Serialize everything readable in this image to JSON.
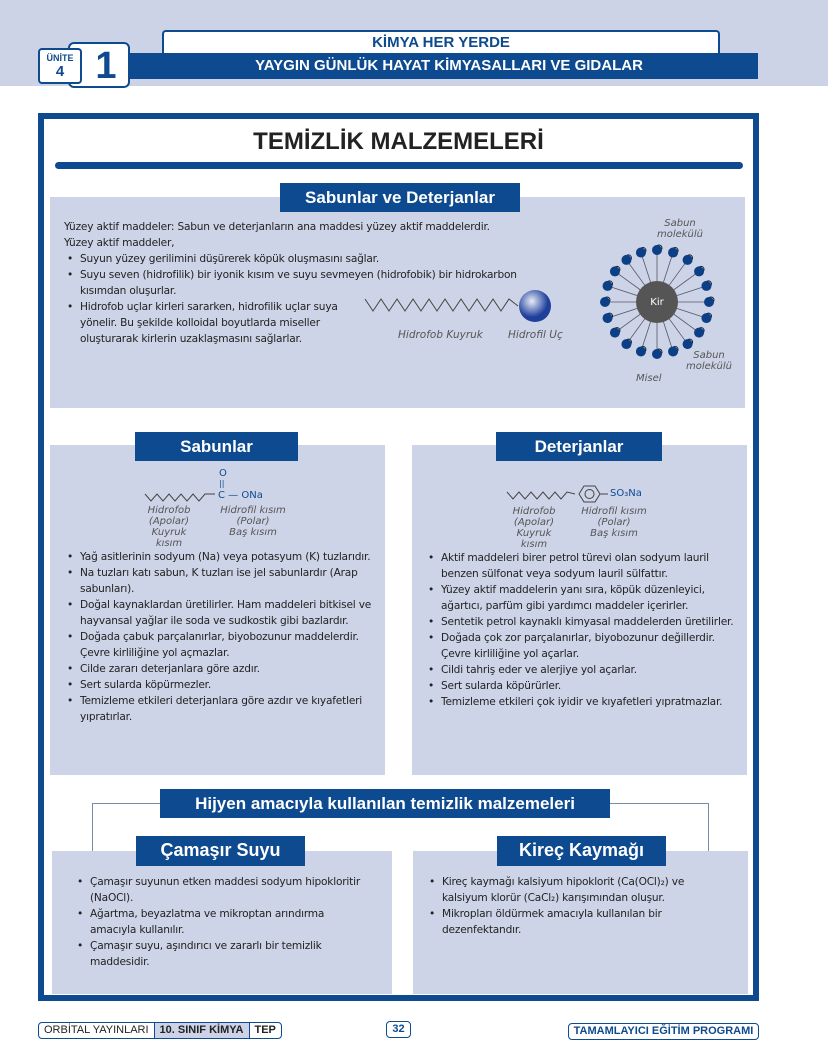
{
  "header": {
    "top_title": "KİMYA HER YERDE",
    "subtitle": "YAYGIN GÜNLÜK HAYAT KİMYASALLARI VE GIDALAR",
    "unit_label": "ÜNİTE",
    "unit_number": "4",
    "chapter_number": "1"
  },
  "page_title": "TEMİZLİK MALZEMELERİ",
  "section1": {
    "heading": "Sabunlar ve Deterjanlar",
    "intro1": "Yüzey aktif maddeler: Sabun ve deterjanların ana maddesi yüzey aktif maddelerdir.",
    "intro2": "Yüzey aktif maddeler,",
    "bullets": [
      "Suyun yüzey gerilimini düşürerek köpük oluşmasını sağlar.",
      "Suyu seven (hidrofilik) bir iyonik kısım ve suyu sevmeyen (hidrofobik) bir hidrokarbon kısımdan oluşurlar.",
      "Hidrofob uçlar kirleri sararken, hidrofilik uçlar suya yönelir. Bu şekilde kolloidal boyutlarda miseller oluşturarak kirlerin uzaklaşmasını sağlarlar."
    ],
    "diagram": {
      "tail_label": "Hidrofob Kuyruk",
      "head_label": "Hidrofil Uç",
      "dirt_label": "Kir",
      "molecule_label_top": "Sabun molekülü",
      "molecule_label_bottom": "Sabun molekülü",
      "micelle_label": "Misel"
    }
  },
  "soaps": {
    "heading": "Sabunlar",
    "formula_o": "O",
    "formula_bond": "||",
    "formula": "C — ONa",
    "tail": [
      "Hidrofob",
      "(Apolar)",
      "Kuyruk kısım"
    ],
    "head": [
      "Hidrofil kısım",
      "(Polar)",
      "Baş kısım"
    ],
    "bullets": [
      "Yağ asitlerinin sodyum (Na) veya potasyum (K) tuzlarıdır.",
      "Na tuzları katı sabun, K tuzları ise jel sabunlardır (Arap sabunları).",
      "Doğal kaynaklardan üretilirler. Ham maddeleri bitkisel ve hayvansal yağlar ile soda ve sudkostik gibi bazlardır.",
      "Doğada çabuk parçalanırlar, biyobozunur maddelerdir. Çevre kirliliğine yol açmazlar.",
      "Cilde zararı deterjanlara göre azdır.",
      "Sert sularda köpürmezler.",
      "Temizleme etkileri deterjanlara göre azdır ve kıyafetleri yıpratırlar."
    ]
  },
  "detergents": {
    "heading": "Deterjanlar",
    "formula": "SO₃Na",
    "tail": [
      "Hidrofob",
      "(Apolar)",
      "Kuyruk kısım"
    ],
    "head": [
      "Hidrofil kısım",
      "(Polar)",
      "Baş kısım"
    ],
    "bullets": [
      "Aktif maddeleri birer petrol türevi olan sodyum lauril benzen sülfonat veya sodyum lauril sülfattır.",
      "Yüzey aktif maddelerin yanı sıra, köpük düzenleyici, ağartıcı, parfüm gibi yardımcı maddeler içerirler.",
      "Sentetik petrol kaynaklı kimyasal maddelerden üretilirler.",
      "Doğada çok zor parçalanırlar, biyobozunur değillerdir. Çevre kirliliğine yol açarlar.",
      "Cildi tahriş eder ve alerjiye yol açarlar.",
      "Sert sularda köpürürler.",
      "Temizleme etkileri çok iyidir ve kıyafetleri yıpratmazlar."
    ]
  },
  "hygiene": {
    "heading": "Hijyen amacıyla kullanılan temizlik malzemeleri",
    "bleach": {
      "heading": "Çamaşır Suyu",
      "bullets": [
        "Çamaşır suyunun etken maddesi sodyum hipokloritir (NaOCl).",
        "Ağartma, beyazlatma ve mikroptan arındırma amacıyla kullanılır.",
        "Çamaşır suyu, aşındırıcı ve zararlı bir temizlik maddesidir."
      ]
    },
    "lime": {
      "heading": "Kireç Kaymağı",
      "bullets": [
        "Kireç kaymağı kalsiyum hipoklorit (Ca(OCl)₂) ve kalsiyum klorür (CaCl₂) karışımından oluşur.",
        "Mikropları öldürmek amacıyla kullanılan bir dezenfektandır."
      ]
    }
  },
  "footer": {
    "publisher": "ORBİTAL YAYINLARI",
    "grade": "10. SINIF KİMYA",
    "tag": "TEP",
    "page": "32",
    "program": "TAMAMLAYICI EĞİTİM PROGRAMI"
  },
  "colors": {
    "primary": "#0d4a8f",
    "panel": "#ced4e7",
    "band": "#cdd3e6"
  }
}
